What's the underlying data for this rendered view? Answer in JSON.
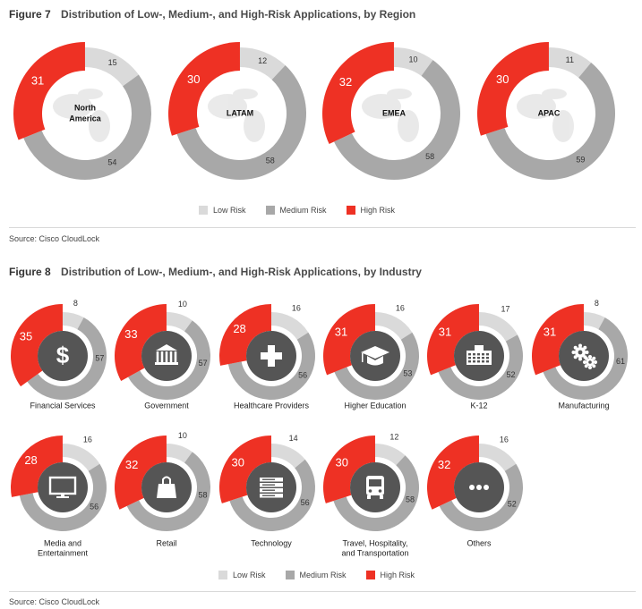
{
  "colors": {
    "low": "#dadada",
    "medium": "#a8a8a8",
    "high": "#ee3124",
    "text_dark": "#333333"
  },
  "legend": {
    "low": "Low Risk",
    "medium": "Medium Risk",
    "high": "High Risk"
  },
  "figure7": {
    "label": "Figure 7",
    "title": "Distribution of Low-, Medium-, and High-Risk Applications, by Region",
    "source": "Source: Cisco CloudLock"
  },
  "figure8": {
    "label": "Figure 8",
    "title": "Distribution of Low-, Medium-, and High-Risk Applications, by Industry",
    "source": "Source: Cisco CloudLock"
  },
  "chart_data": [
    {
      "type": "donut",
      "title": "Distribution of Low-, Medium-, and High-Risk Applications, by Region",
      "series_names": [
        "Low Risk",
        "Medium Risk",
        "High Risk"
      ],
      "categories": [
        {
          "name": "North America",
          "low": 15,
          "medium": 54,
          "high": 31,
          "icon": "world-map-north-america"
        },
        {
          "name": "LATAM",
          "low": 12,
          "medium": 58,
          "high": 30,
          "icon": "world-map-latam"
        },
        {
          "name": "EMEA",
          "low": 10,
          "medium": 58,
          "high": 32,
          "icon": "world-map-emea"
        },
        {
          "name": "APAC",
          "low": 11,
          "medium": 59,
          "high": 30,
          "icon": "world-map-apac"
        }
      ]
    },
    {
      "type": "donut",
      "title": "Distribution of Low-, Medium-, and High-Risk Applications, by Industry",
      "series_names": [
        "Low Risk",
        "Medium Risk",
        "High Risk"
      ],
      "categories": [
        {
          "name": "Financial Services",
          "low": 8,
          "medium": 57,
          "high": 35,
          "icon": "dollar-icon"
        },
        {
          "name": "Government",
          "low": 10,
          "medium": 57,
          "high": 33,
          "icon": "government-building-icon"
        },
        {
          "name": "Healthcare Providers",
          "low": 16,
          "medium": 56,
          "high": 28,
          "icon": "medical-cross-icon"
        },
        {
          "name": "Higher Education",
          "low": 16,
          "medium": 53,
          "high": 31,
          "icon": "graduation-cap-icon"
        },
        {
          "name": "K-12",
          "low": 17,
          "medium": 52,
          "high": 31,
          "icon": "school-building-icon"
        },
        {
          "name": "Manufacturing",
          "low": 8,
          "medium": 61,
          "high": 31,
          "icon": "gears-icon"
        },
        {
          "name": "Media and Entertainment",
          "low": 16,
          "medium": 56,
          "high": 28,
          "icon": "monitor-icon"
        },
        {
          "name": "Retail",
          "low": 10,
          "medium": 58,
          "high": 32,
          "icon": "shopping-bag-icon"
        },
        {
          "name": "Technology",
          "low": 14,
          "medium": 56,
          "high": 30,
          "icon": "server-rack-icon"
        },
        {
          "name": "Travel, Hospitality, and Transportation",
          "low": 12,
          "medium": 58,
          "high": 30,
          "icon": "bus-icon"
        },
        {
          "name": "Others",
          "low": 16,
          "medium": 52,
          "high": 32,
          "icon": "ellipsis-icon"
        }
      ]
    }
  ]
}
